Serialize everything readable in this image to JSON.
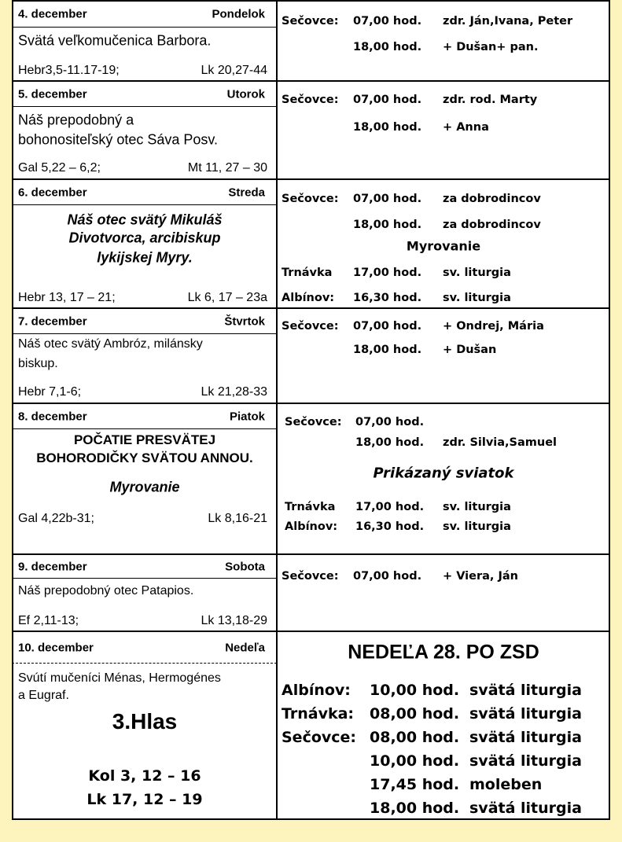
{
  "days": [
    {
      "date": "4. december",
      "weekday": "Pondelok",
      "feast": [
        "Svätá veľkomučenica  Barbora."
      ],
      "readings": [
        "Hebr3,5-11.17-19;",
        "Lk 20,27-44"
      ],
      "services": [
        {
          "place": "Sečovce:",
          "time": "07,00 hod.",
          "intention": "zdr. Ján,Ivana, Peter"
        },
        {
          "time": "18,00 hod.",
          "intention": "+ Dušan+ pan."
        }
      ]
    },
    {
      "date": "5. december",
      "weekday": "Utorok",
      "feast": [
        "Náš prepodobný a",
        "bohonositeľský otec Sáva Posv."
      ],
      "readings": [
        "Gal 5,22 – 6,2;",
        "Mt 11, 27 – 30"
      ],
      "services": [
        {
          "place": "Sečovce:",
          "time": "07,00 hod.",
          "intention": "zdr. rod. Marty"
        },
        {
          "time": "18,00 hod.",
          "intention": "+ Anna"
        }
      ]
    },
    {
      "date": "6. december",
      "weekday": "Streda",
      "feast": [
        "Náš otec svätý Mikuláš",
        "Divotvorca, arcibiskup",
        "lykijskej Myry."
      ],
      "readings": [
        "Hebr 13, 17 – 21;",
        "Lk 6, 17 – 23a"
      ],
      "services": [
        {
          "place": "Sečovce:",
          "time": "07,00 hod.",
          "intention": "za dobrodincov"
        },
        {
          "time": "18,00 hod.",
          "intention": "za dobrodincov"
        },
        {
          "note": "Myrovanie"
        },
        {
          "place": "Trnávka",
          "time": "17,00 hod.",
          "intention": "sv. liturgia"
        },
        {
          "place": "Albínov:",
          "time": "16,30 hod.",
          "intention": "sv. liturgia"
        }
      ]
    },
    {
      "date": "7. december",
      "weekday": "Štvrtok",
      "feast": [
        "Náš otec svätý Ambróz, milánsky",
        "biskup."
      ],
      "readings": [
        "Hebr 7,1-6;",
        "Lk 21,28-33"
      ],
      "services": [
        {
          "place": "Sečovce:",
          "time": "07,00 hod.",
          "intention": "+ Ondrej, Mária"
        },
        {
          "time": "18,00 hod.",
          "intention": "+ Dušan"
        }
      ]
    },
    {
      "date": "8. december",
      "weekday": "Piatok",
      "feast": [
        "POČATIE PRESVÄTEJ",
        "BOHORODIČKY SVÄTOU ANNOU."
      ],
      "note": "Myrovanie",
      "readings": [
        "Gal 4,22b-31;",
        "Lk 8,16-21"
      ],
      "services": [
        {
          "place": "Sečovce:",
          "time": "07,00 hod."
        },
        {
          "time": "18,00 hod.",
          "intention": "zdr. Silvia,Samuel"
        },
        {
          "note": "Prikázaný sviatok"
        },
        {
          "place": "Trnávka",
          "time": "17,00 hod.",
          "intention": "sv. liturgia"
        },
        {
          "place": "Albínov:",
          "time": "16,30 hod.",
          "intention": "sv. liturgia"
        }
      ]
    },
    {
      "date": "9. december",
      "weekday": "Sobota",
      "feast": [
        "Náš prepodobný otec Patapios."
      ],
      "readings": [
        "Ef  2,11-13;",
        "Lk  13,18-29"
      ],
      "services": [
        {
          "place": "Sečovce:",
          "time": "07,00 hod.",
          "intention": "+ Viera, Ján"
        }
      ]
    },
    {
      "date": "10. december",
      "weekday": "Nedeľa",
      "feast": [
        "Svútí mučeníci Ménas, Hermogénes",
        "a Eugraf."
      ],
      "tone": "3.Hlas",
      "readings": [
        "Kol 3, 12 – 16",
        "Lk 17, 12 – 19"
      ],
      "heading": "NEDEĽA 28. PO ZSD",
      "services": [
        {
          "place": "Albínov:",
          "time": "10,00 hod.",
          "intention": "svätá liturgia"
        },
        {
          "place": "Trnávka:",
          "time": "08,00 hod.",
          "intention": "svätá liturgia"
        },
        {
          "place": "Sečovce:",
          "time": "08,00 hod.",
          "intention": "svätá liturgia"
        },
        {
          "time": "10,00 hod.",
          "intention": "svätá liturgia"
        },
        {
          "time": "17,45 hod.",
          "intention": "moleben"
        },
        {
          "time": "18,00 hod.",
          "intention": "svätá liturgia"
        }
      ]
    }
  ]
}
